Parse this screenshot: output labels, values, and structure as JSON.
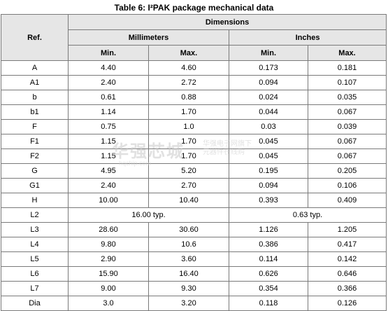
{
  "caption": "Table 6: I²PAK package mechanical data",
  "header": {
    "ref": "Ref.",
    "dimensions": "Dimensions",
    "millimeters": "Millimeters",
    "inches": "Inches",
    "mm_min": "Min.",
    "mm_max": "Max.",
    "in_min": "Min.",
    "in_max": "Max."
  },
  "rows": [
    {
      "ref": "A",
      "mm_min": "4.40",
      "mm_max": "4.60",
      "in_min": "0.173",
      "in_max": "0.181"
    },
    {
      "ref": "A1",
      "mm_min": "2.40",
      "mm_max": "2.72",
      "in_min": "0.094",
      "in_max": "0.107"
    },
    {
      "ref": "b",
      "mm_min": "0.61",
      "mm_max": "0.88",
      "in_min": "0.024",
      "in_max": "0.035"
    },
    {
      "ref": "b1",
      "mm_min": "1.14",
      "mm_max": "1.70",
      "in_min": "0.044",
      "in_max": "0.067"
    },
    {
      "ref": "F",
      "mm_min": "0.75",
      "mm_max": "1.0",
      "in_min": "0.03",
      "in_max": "0.039"
    },
    {
      "ref": "F1",
      "mm_min": "1.15",
      "mm_max": "1.70",
      "in_min": "0.045",
      "in_max": "0.067"
    },
    {
      "ref": "F2",
      "mm_min": "1.15",
      "mm_max": "1.70",
      "in_min": "0.045",
      "in_max": "0.067"
    },
    {
      "ref": "G",
      "mm_min": "4.95",
      "mm_max": "5.20",
      "in_min": "0.195",
      "in_max": "0.205"
    },
    {
      "ref": "G1",
      "mm_min": "2.40",
      "mm_max": "2.70",
      "in_min": "0.094",
      "in_max": "0.106"
    },
    {
      "ref": "H",
      "mm_min": "10.00",
      "mm_max": "10.40",
      "in_min": "0.393",
      "in_max": "0.409"
    },
    {
      "ref": "L2",
      "mm_typ": "16.00 typ.",
      "in_typ": "0.63 typ."
    },
    {
      "ref": "L3",
      "mm_min": "28.60",
      "mm_max": "30.60",
      "in_min": "1.126",
      "in_max": "1.205"
    },
    {
      "ref": "L4",
      "mm_min": "9.80",
      "mm_max": "10.6",
      "in_min": "0.386",
      "in_max": "0.417"
    },
    {
      "ref": "L5",
      "mm_min": "2.90",
      "mm_max": "3.60",
      "in_min": "0.114",
      "in_max": "0.142"
    },
    {
      "ref": "L6",
      "mm_min": "15.90",
      "mm_max": "16.40",
      "in_min": "0.626",
      "in_max": "0.646"
    },
    {
      "ref": "L7",
      "mm_min": "9.00",
      "mm_max": "9.30",
      "in_min": "0.354",
      "in_max": "0.366"
    },
    {
      "ref": "Dia",
      "mm_min": "3.0",
      "mm_max": "3.20",
      "in_min": "0.118",
      "in_max": "0.126"
    }
  ],
  "watermark": {
    "main": "华强芯城",
    "side": "华强电子网旗下\n元器件在线购",
    "url": "hqchip.com"
  }
}
